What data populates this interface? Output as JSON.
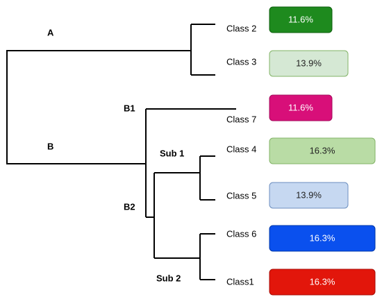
{
  "nodes": [
    {
      "label": "A"
    },
    {
      "label": "B"
    },
    {
      "label": "B1"
    },
    {
      "label": "B2"
    },
    {
      "label": "Sub 1"
    },
    {
      "label": "Sub 2"
    }
  ],
  "leaves": [
    {
      "label": "Class 2",
      "share": "11.6%",
      "color": "#1e8a1e"
    },
    {
      "label": "Class 3",
      "share": "13.9%",
      "color": "#d5e8d4"
    },
    {
      "label": "Class 7",
      "share": "11.6%",
      "color": "#d80f79"
    },
    {
      "label": "Class 4",
      "share": "16.3%",
      "color": "#b9dca5"
    },
    {
      "label": "Class 5",
      "share": "13.9%",
      "color": "#c6d8f1"
    },
    {
      "label": "Class 6",
      "share": "16.3%",
      "color": "#0a50ee"
    },
    {
      "label": "Class1",
      "share": "16.3%",
      "color": "#e2160b"
    }
  ]
}
